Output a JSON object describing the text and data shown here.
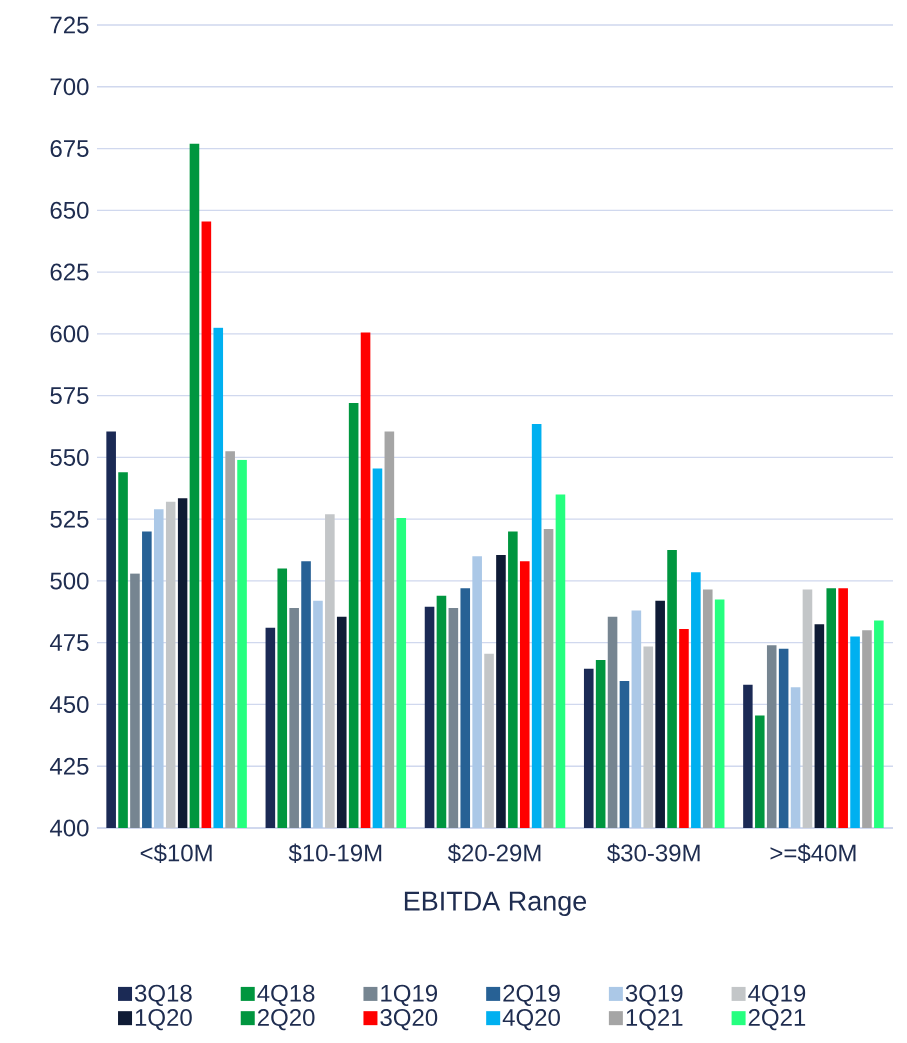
{
  "chart_data": {
    "type": "bar",
    "xlabel": "EBITDA Range",
    "categories": [
      "<$10M",
      "$10-19M",
      "$20-29M",
      "$30-39M",
      ">=$40M"
    ],
    "ylim": [
      400,
      725
    ],
    "yticks": [
      400,
      425,
      450,
      475,
      500,
      525,
      550,
      575,
      600,
      625,
      650,
      675,
      700,
      725
    ],
    "grid": "y",
    "legend": "bottom",
    "series": [
      {
        "name": "3Q18",
        "color": "#1b2a55",
        "values": [
          560.5,
          481,
          489.5,
          464.5,
          458
        ]
      },
      {
        "name": "4Q18",
        "color": "#00963f",
        "values": [
          544,
          505,
          494,
          468,
          445.5
        ]
      },
      {
        "name": "1Q19",
        "color": "#768591",
        "values": [
          503,
          489,
          489,
          485.5,
          474
        ]
      },
      {
        "name": "2Q19",
        "color": "#276195",
        "values": [
          520,
          508,
          497,
          459.5,
          472.5
        ]
      },
      {
        "name": "3Q19",
        "color": "#abc8e7",
        "values": [
          529,
          492,
          510,
          488,
          457
        ]
      },
      {
        "name": "4Q19",
        "color": "#c3c6c8",
        "values": [
          532,
          527,
          470.5,
          473.5,
          496.5
        ]
      },
      {
        "name": "1Q20",
        "color": "#0f1b35",
        "values": [
          533.5,
          485.5,
          510.5,
          492,
          482.5
        ]
      },
      {
        "name": "2Q20",
        "color": "#00963f",
        "values": [
          677,
          572,
          520,
          512.5,
          497
        ]
      },
      {
        "name": "3Q20",
        "color": "#ff0000",
        "values": [
          645.5,
          600.5,
          508,
          480.5,
          497
        ]
      },
      {
        "name": "4Q20",
        "color": "#00b0f0",
        "values": [
          602.5,
          545.5,
          563.5,
          503.5,
          477.5
        ]
      },
      {
        "name": "1Q21",
        "color": "#a5a5a5",
        "values": [
          552.5,
          560.5,
          521,
          496.5,
          480
        ]
      },
      {
        "name": "2Q21",
        "color": "#25ff7f",
        "values": [
          549,
          525.5,
          535,
          492.5,
          484
        ]
      }
    ]
  }
}
